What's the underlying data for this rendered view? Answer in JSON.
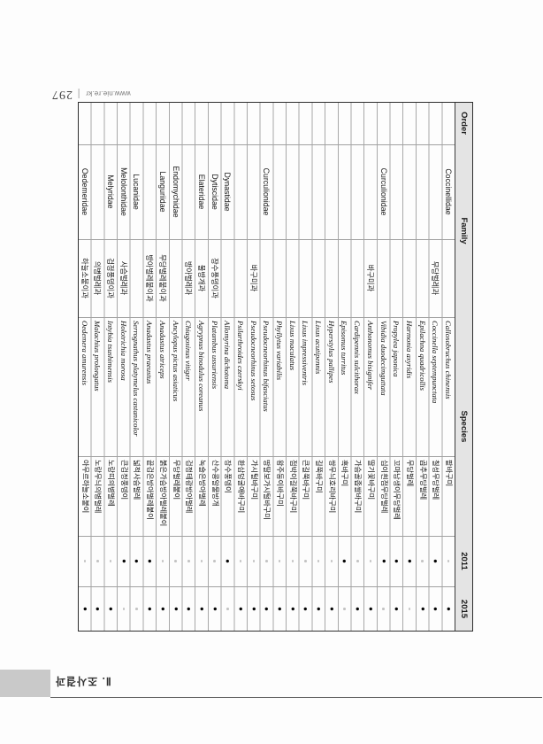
{
  "page_header": {
    "url": "www.nie.re.kr",
    "page_number": "297"
  },
  "page_footer": {
    "section": "Ⅱ. 조사결과"
  },
  "accent_colors": {
    "header_row_bg": "#e4e4e4",
    "grid_line": "#a8a8a8",
    "footer_box": "#c9c9c9"
  },
  "table": {
    "headers": {
      "order": "Order",
      "family": "Family",
      "species": "Species",
      "y2011": "2011",
      "y2015": "2015"
    },
    "present_mark": "●",
    "rows": [
      {
        "family_latin": "Coccinellidae",
        "family_korean": "",
        "species": "Callosobruchus chinensis",
        "korean": "팥바구미",
        "y2011": false,
        "y2015": true
      },
      {
        "family_latin": "",
        "family_korean": "무당벌레과",
        "species": "Coccinella septempunctata",
        "korean": "칠성무당벌레",
        "y2011": true,
        "y2015": true
      },
      {
        "family_latin": "",
        "family_korean": "",
        "species": "Epilachna quadricollis",
        "korean": "곱추무당벌레",
        "y2011": false,
        "y2015": true
      },
      {
        "family_latin": "",
        "family_korean": "",
        "species": "Harmonia axyridis",
        "korean": "무당벌레",
        "y2011": true,
        "y2015": false
      },
      {
        "family_latin": "",
        "family_korean": "",
        "species": "Propylea japonica",
        "korean": "꼬마남생이무당벌레",
        "y2011": true,
        "y2015": true
      },
      {
        "family_latin": "Curculionidae",
        "family_korean": "",
        "species": "Vibidia duodecimguttata",
        "korean": "십이흰점무당벌레",
        "y2011": true,
        "y2015": false
      },
      {
        "family_latin": "",
        "family_korean": "바구미과",
        "species": "Anthonomus bisignifer",
        "korean": "딸기꽃바구미",
        "y2011": false,
        "y2015": true
      },
      {
        "family_latin": "",
        "family_korean": "",
        "species": "Cardipennis sulcithorax",
        "korean": "가슴골좁쌀바구미",
        "y2011": false,
        "y2015": true
      },
      {
        "family_latin": "",
        "family_korean": "",
        "species": "Episomus turritus",
        "korean": "혹바구미",
        "y2011": true,
        "y2015": false
      },
      {
        "family_latin": "",
        "family_korean": "",
        "species": "Hyperstylus pallipes",
        "korean": "쌍무늬호리바구미",
        "y2011": false,
        "y2015": true
      },
      {
        "family_latin": "",
        "family_korean": "",
        "species": "Lixus acutipennis",
        "korean": "길쭉바구미",
        "y2011": false,
        "y2015": true
      },
      {
        "family_latin": "",
        "family_korean": "",
        "species": "Lixus impressiventris",
        "korean": "큰길쭉바구미",
        "y2011": false,
        "y2015": true
      },
      {
        "family_latin": "",
        "family_korean": "",
        "species": "Lixus maculatus",
        "korean": "점박이길쭉바구미",
        "y2011": false,
        "y2015": true
      },
      {
        "family_latin": "",
        "family_korean": "",
        "species": "Phyllytus variabilis",
        "korean": "왕주둥이바구미",
        "y2011": false,
        "y2015": true
      },
      {
        "family_latin": "Curculionidae",
        "family_korean": "",
        "species": "Pseudocneorhinus bifasciatus",
        "korean": "땅딸보가시털바구미",
        "y2011": false,
        "y2015": true
      },
      {
        "family_latin": "",
        "family_korean": "바구미과",
        "species": "Pseudocneorhinus setosus",
        "korean": "가시털바구미",
        "y2011": false,
        "y2015": true
      },
      {
        "family_latin": "",
        "family_korean": "",
        "species": "Psilarthroides czerskyi",
        "korean": "환삼덩굴애바구미",
        "y2011": false,
        "y2015": true
      },
      {
        "family_latin": "Dynastidae",
        "family_korean": "",
        "species": "Allomyrina dichotoma",
        "korean": "장수풍뎅이",
        "y2011": true,
        "y2015": false
      },
      {
        "family_latin": "Dytiscidae",
        "family_korean": "장수풍뎅이과",
        "species": "Platambus ussuriensis",
        "korean": "산수콩알물방개",
        "y2011": false,
        "y2015": true
      },
      {
        "family_latin": "Elateridae",
        "family_korean": "물방개과",
        "species": "Agrypnus binodulus coreanus",
        "korean": "녹슬은방아벌레",
        "y2011": false,
        "y2015": true
      },
      {
        "family_latin": "",
        "family_korean": "방아벌레과",
        "species": "Chiagosinus vitiger",
        "korean": "검정테광방아벌레",
        "y2011": false,
        "y2015": true
      },
      {
        "family_latin": "Endomychidae",
        "family_korean": "",
        "species": "Ancylopus pictus asiaticus",
        "korean": "무당벌레붙이",
        "y2011": false,
        "y2015": true
      },
      {
        "family_latin": "Languriidae",
        "family_korean": "무당벌레붙이과",
        "species": "Anadastus atriceps",
        "korean": "붉은가슴방아벌레붙이",
        "y2011": false,
        "y2015": true
      },
      {
        "family_latin": "",
        "family_korean": "방아벌레붙이과",
        "species": "Anadastus praeustus",
        "korean": "끝검은방아벌레붙이",
        "y2011": true,
        "y2015": true
      },
      {
        "family_latin": "Lucanidae",
        "family_korean": "",
        "species": "Serrognathus platymelus castanicolor",
        "korean": "넓적사슴벌레",
        "y2011": true,
        "y2015": false
      },
      {
        "family_latin": "Melolonthidae",
        "family_korean": "사슴벌레과",
        "species": "Holotrichia morosa",
        "korean": "큰검정풍뎅이",
        "y2011": true,
        "y2015": false
      },
      {
        "family_latin": "Melyridae",
        "family_korean": "검정풍뎅이과",
        "species": "Intybia tsushimensis",
        "korean": "노랑띠의병벌레",
        "y2011": false,
        "y2015": true
      },
      {
        "family_latin": "",
        "family_korean": "의병벌레과",
        "species": "Malachius prolongatus",
        "korean": "노랑무늬의병벌레",
        "y2011": false,
        "y2015": true
      },
      {
        "family_latin": "Oedemeridae",
        "family_korean": "하늘소붙이과",
        "species": "Oedemera amurensis",
        "korean": "아무르하늘소붙이",
        "y2011": false,
        "y2015": true
      }
    ]
  }
}
